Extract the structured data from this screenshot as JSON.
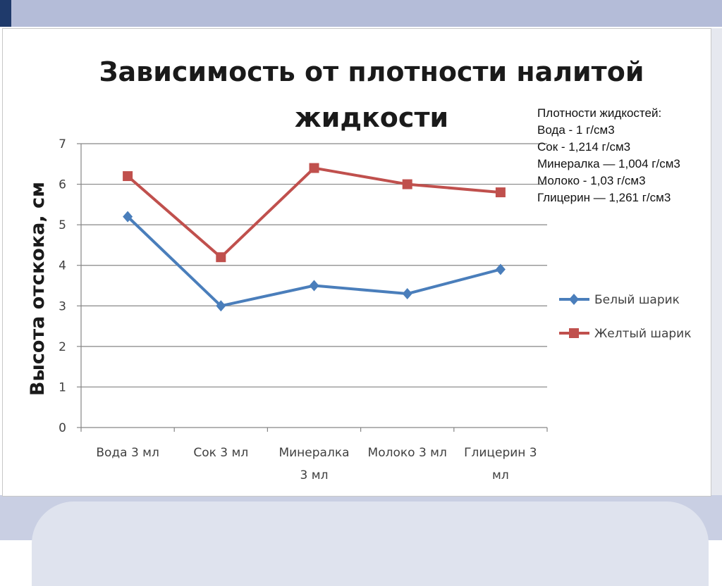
{
  "chart_data": {
    "type": "line",
    "title_lines": [
      "Зависимость от плотности налитой",
      "жидкости"
    ],
    "ylabel": "Высота отскока, см",
    "xlabel": "",
    "ylim": [
      0,
      7
    ],
    "yticks": [
      "0",
      "1",
      "2",
      "3",
      "4",
      "5",
      "6",
      "7"
    ],
    "categories": [
      [
        "Вода 3 мл"
      ],
      [
        "Сок 3 мл"
      ],
      [
        "Минералка",
        "3 мл"
      ],
      [
        "Молоко 3 мл"
      ],
      [
        "Глицерин 3",
        "мл"
      ]
    ],
    "series": [
      {
        "name": "Белый шарик",
        "marker": "diamond",
        "color": "#4a7ebb",
        "values": [
          5.2,
          3.0,
          3.5,
          3.3,
          3.9
        ]
      },
      {
        "name": "Желтый шарик",
        "marker": "square",
        "color": "#c0504d",
        "values": [
          6.2,
          4.2,
          6.4,
          6.0,
          5.8
        ]
      }
    ],
    "grid": true,
    "legend_position": "right"
  },
  "note": {
    "heading": "Плотности жидкостей:",
    "lines": [
      "Вода -  1  г/см3",
      "Сок - 1,214 г/см3",
      "Минералка — 1,004 г/см3",
      "Молоко -  1,03 г/см3",
      "Глицерин — 1,261 г/см3"
    ]
  },
  "colors": {
    "grid": "#868686",
    "axis": "#868686",
    "header_band": "#b4bcd8",
    "header_accent": "#1f3a6b"
  }
}
